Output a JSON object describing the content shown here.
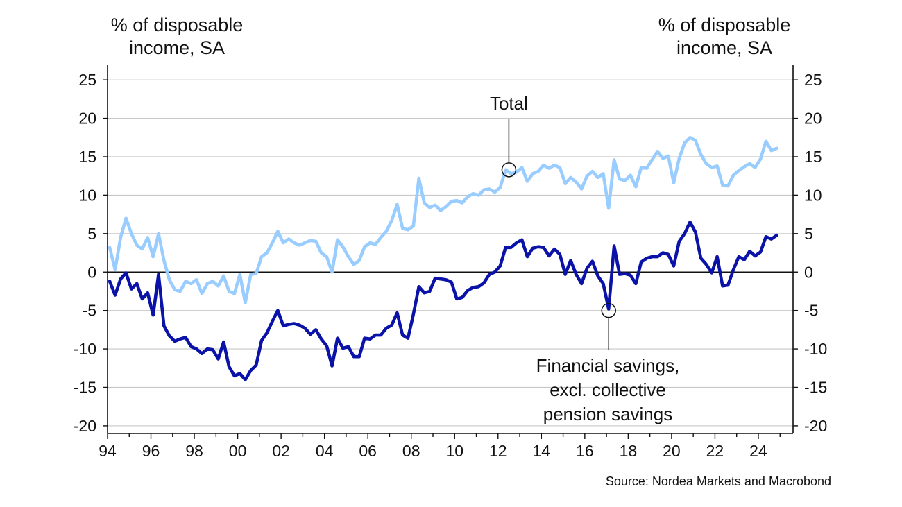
{
  "chart_data": {
    "type": "line",
    "y_left_label": "% of disposable income, SA",
    "y_right_label": "% of disposable income, SA",
    "source": "Source: Nordea Markets and Macrobond",
    "ylim": [
      -21,
      27
    ],
    "xlim": [
      1994,
      2025.6
    ],
    "y_ticks": [
      25,
      20,
      15,
      10,
      5,
      0,
      -5,
      -10,
      -15,
      -20
    ],
    "y_tick_labels": [
      "25",
      "20",
      "15",
      "10",
      "5",
      "0",
      "-5",
      "-10",
      "-15",
      "-20"
    ],
    "x_ticks": [
      1994,
      1996,
      1998,
      2000,
      2002,
      2004,
      2006,
      2008,
      2010,
      2012,
      2014,
      2016,
      2018,
      2020,
      2022,
      2024
    ],
    "x_tick_labels": [
      "94",
      "96",
      "98",
      "00",
      "02",
      "04",
      "06",
      "08",
      "10",
      "12",
      "14",
      "16",
      "18",
      "20",
      "22",
      "24"
    ],
    "grid": "horizontal",
    "colors": {
      "total": "#99ccff",
      "financial": "#0a12a8",
      "zero_line": "#111111",
      "grid": "#c8c8c8"
    },
    "annotations": {
      "total": "Total",
      "financial": [
        "Financial savings,",
        "excl. collective",
        "pension savings"
      ]
    },
    "series": [
      {
        "name": "Total",
        "x": [
          1994.1,
          1994.35,
          1994.6,
          1994.85,
          1995.1,
          1995.35,
          1995.6,
          1995.85,
          1996.1,
          1996.35,
          1996.6,
          1996.85,
          1997.1,
          1997.35,
          1997.6,
          1997.85,
          1998.1,
          1998.35,
          1998.6,
          1998.85,
          1999.1,
          1999.35,
          1999.6,
          1999.85,
          2000.1,
          2000.35,
          2000.6,
          2000.85,
          2001.1,
          2001.35,
          2001.6,
          2001.85,
          2002.1,
          2002.35,
          2002.6,
          2002.85,
          2003.1,
          2003.35,
          2003.6,
          2003.85,
          2004.1,
          2004.35,
          2004.6,
          2004.85,
          2005.1,
          2005.35,
          2005.6,
          2005.85,
          2006.1,
          2006.35,
          2006.6,
          2006.85,
          2007.1,
          2007.35,
          2007.6,
          2007.85,
          2008.1,
          2008.35,
          2008.6,
          2008.85,
          2009.1,
          2009.35,
          2009.6,
          2009.85,
          2010.1,
          2010.35,
          2010.6,
          2010.85,
          2011.1,
          2011.35,
          2011.6,
          2011.85,
          2012.1,
          2012.35,
          2012.6,
          2012.85,
          2013.1,
          2013.35,
          2013.6,
          2013.85,
          2014.1,
          2014.35,
          2014.6,
          2014.85,
          2015.1,
          2015.35,
          2015.6,
          2015.85,
          2016.1,
          2016.35,
          2016.6,
          2016.85,
          2017.1,
          2017.35,
          2017.6,
          2017.85,
          2018.1,
          2018.35,
          2018.6,
          2018.85,
          2019.1,
          2019.35,
          2019.6,
          2019.85,
          2020.1,
          2020.35,
          2020.6,
          2020.85,
          2021.1,
          2021.35,
          2021.6,
          2021.85,
          2022.1,
          2022.35,
          2022.6,
          2022.85,
          2023.1,
          2023.35,
          2023.6,
          2023.85,
          2024.1,
          2024.35,
          2024.6,
          2024.85
        ],
        "values": [
          3.2,
          0.3,
          4.5,
          7.0,
          5.0,
          3.5,
          3.0,
          4.5,
          2.0,
          5.0,
          1.5,
          -1.0,
          -2.3,
          -2.5,
          -1.2,
          -1.5,
          -1.0,
          -2.8,
          -1.5,
          -1.2,
          -1.8,
          -0.5,
          -2.5,
          -2.8,
          -0.3,
          -4.0,
          -0.3,
          -0.2,
          2.0,
          2.5,
          3.8,
          5.3,
          3.8,
          4.3,
          3.8,
          3.5,
          3.8,
          4.1,
          4.0,
          2.5,
          2.0,
          0.0,
          4.2,
          3.3,
          2.0,
          1.0,
          1.5,
          3.3,
          3.8,
          3.6,
          4.5,
          5.3,
          6.7,
          8.8,
          5.7,
          5.5,
          6.0,
          12.2,
          9.0,
          8.4,
          8.7,
          8.0,
          8.5,
          9.2,
          9.3,
          9.0,
          9.8,
          10.2,
          10.0,
          10.7,
          10.8,
          10.4,
          11.0,
          13.3,
          12.8,
          13.0,
          13.6,
          11.8,
          12.8,
          13.1,
          13.9,
          13.5,
          13.9,
          13.6,
          11.5,
          12.3,
          11.7,
          10.8,
          12.5,
          13.1,
          12.3,
          12.8,
          8.3,
          14.6,
          12.1,
          11.9,
          12.6,
          11.1,
          13.6,
          13.5,
          14.6,
          15.7,
          14.8,
          15.1,
          11.6,
          14.8,
          16.8,
          17.5,
          17.1,
          15.3,
          14.1,
          13.6,
          13.8,
          11.3,
          11.2,
          12.6,
          13.2,
          13.7,
          14.1,
          13.6,
          14.7,
          17.0,
          15.8,
          16.1
        ]
      },
      {
        "name": "Financial savings, excl. collective pension savings",
        "x": [
          1994.1,
          1994.35,
          1994.6,
          1994.85,
          1995.1,
          1995.35,
          1995.6,
          1995.85,
          1996.1,
          1996.35,
          1996.6,
          1996.85,
          1997.1,
          1997.35,
          1997.6,
          1997.85,
          1998.1,
          1998.35,
          1998.6,
          1998.85,
          1999.1,
          1999.35,
          1999.6,
          1999.85,
          2000.1,
          2000.35,
          2000.6,
          2000.85,
          2001.1,
          2001.35,
          2001.6,
          2001.85,
          2002.1,
          2002.35,
          2002.6,
          2002.85,
          2003.1,
          2003.35,
          2003.6,
          2003.85,
          2004.1,
          2004.35,
          2004.6,
          2004.85,
          2005.1,
          2005.35,
          2005.6,
          2005.85,
          2006.1,
          2006.35,
          2006.6,
          2006.85,
          2007.1,
          2007.35,
          2007.6,
          2007.85,
          2008.1,
          2008.35,
          2008.6,
          2008.85,
          2009.1,
          2009.35,
          2009.6,
          2009.85,
          2010.1,
          2010.35,
          2010.6,
          2010.85,
          2011.1,
          2011.35,
          2011.6,
          2011.85,
          2012.1,
          2012.35,
          2012.6,
          2012.85,
          2013.1,
          2013.35,
          2013.6,
          2013.85,
          2014.1,
          2014.35,
          2014.6,
          2014.85,
          2015.1,
          2015.35,
          2015.6,
          2015.85,
          2016.1,
          2016.35,
          2016.6,
          2016.85,
          2017.1,
          2017.35,
          2017.6,
          2017.85,
          2018.1,
          2018.35,
          2018.6,
          2018.85,
          2019.1,
          2019.35,
          2019.6,
          2019.85,
          2020.1,
          2020.35,
          2020.6,
          2020.85,
          2021.1,
          2021.35,
          2021.6,
          2021.85,
          2022.1,
          2022.35,
          2022.6,
          2022.85,
          2023.1,
          2023.35,
          2023.6,
          2023.85,
          2024.1,
          2024.35,
          2024.6,
          2024.85
        ],
        "values": [
          -1.2,
          -3.0,
          -0.9,
          -0.1,
          -2.2,
          -1.5,
          -3.5,
          -2.7,
          -5.6,
          -0.3,
          -7.0,
          -8.3,
          -9.0,
          -8.7,
          -8.5,
          -9.7,
          -10.0,
          -10.6,
          -10.0,
          -10.1,
          -11.3,
          -9.1,
          -12.3,
          -13.5,
          -13.2,
          -14.0,
          -12.8,
          -12.1,
          -8.9,
          -7.9,
          -6.4,
          -5.0,
          -7.0,
          -6.8,
          -6.7,
          -6.9,
          -7.3,
          -8.1,
          -7.5,
          -8.7,
          -9.6,
          -12.2,
          -8.6,
          -9.9,
          -9.7,
          -11.0,
          -11.0,
          -8.6,
          -8.7,
          -8.2,
          -8.2,
          -7.3,
          -6.9,
          -5.3,
          -8.2,
          -8.6,
          -5.5,
          -1.9,
          -2.7,
          -2.5,
          -0.8,
          -0.9,
          -1.0,
          -1.3,
          -3.5,
          -3.3,
          -2.4,
          -2.0,
          -1.9,
          -1.4,
          -0.3,
          0.0,
          0.8,
          3.2,
          3.2,
          3.8,
          4.2,
          2.0,
          3.1,
          3.3,
          3.2,
          2.1,
          3.0,
          2.3,
          -0.3,
          1.5,
          -0.3,
          -1.5,
          0.5,
          1.4,
          -0.5,
          -1.5,
          -4.8,
          3.4,
          -0.3,
          -0.2,
          -0.4,
          -1.5,
          1.3,
          1.8,
          2.0,
          2.0,
          2.5,
          2.3,
          0.8,
          4.0,
          5.0,
          6.5,
          5.2,
          1.8,
          1.0,
          -0.1,
          2.0,
          -1.8,
          -1.7,
          0.3,
          2.0,
          1.6,
          2.7,
          2.1,
          2.6,
          4.6,
          4.3,
          4.8
        ]
      }
    ]
  }
}
